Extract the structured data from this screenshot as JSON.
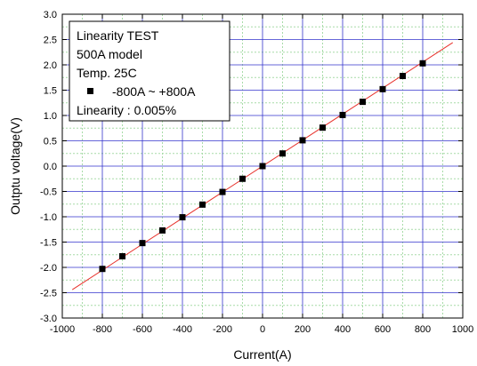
{
  "chart_data": {
    "type": "scatter",
    "title": "",
    "xlabel": "Current(A)",
    "ylabel": "Outptu voltage(V)",
    "xlim": [
      -1000,
      1000
    ],
    "ylim": [
      -3.0,
      3.0
    ],
    "x_ticks": [
      -1000,
      -800,
      -600,
      -400,
      -200,
      0,
      200,
      400,
      600,
      800,
      1000
    ],
    "x_tick_labels": [
      "-1000",
      "-800",
      "-600",
      "-400",
      "-200",
      "0",
      "200",
      "400",
      "600",
      "800",
      "1000"
    ],
    "y_ticks": [
      3.0,
      2.5,
      2.0,
      1.5,
      1.0,
      0.5,
      0.0,
      -0.5,
      -1.0,
      -1.5,
      -2.0,
      -2.5,
      -3.0
    ],
    "y_tick_labels": [
      "3.0",
      "2.5",
      "2.0",
      "1.5",
      "1.0",
      "0.5",
      "0.0",
      "-0.5",
      "-1.0",
      "-1.5",
      "-2.0",
      "-2.5",
      "-3.0"
    ],
    "grid": true,
    "legend_position": "top-left",
    "annotation_lines": [
      "Linearity TEST",
      "500A model",
      "Temp. 25C"
    ],
    "footer_note": "Linearity : 0.005%",
    "series": [
      {
        "name": "-800A ~ +800A",
        "marker": "square",
        "color": "#000000",
        "x": [
          -800,
          -700,
          -600,
          -500,
          -400,
          -300,
          -200,
          -100,
          0,
          100,
          200,
          300,
          400,
          500,
          600,
          700,
          800
        ],
        "y": [
          -2.03,
          -1.78,
          -1.52,
          -1.27,
          -1.01,
          -0.76,
          -0.51,
          -0.25,
          0.0,
          0.25,
          0.51,
          0.76,
          1.01,
          1.27,
          1.52,
          1.78,
          2.03
        ]
      }
    ],
    "fit_line": {
      "color": "#e8302a",
      "x": [
        -950,
        950
      ],
      "y": [
        -2.44,
        2.44
      ]
    },
    "colors": {
      "major_grid": "#3333cc",
      "minor_grid": "#a8dca8",
      "frame": "#000000"
    }
  }
}
